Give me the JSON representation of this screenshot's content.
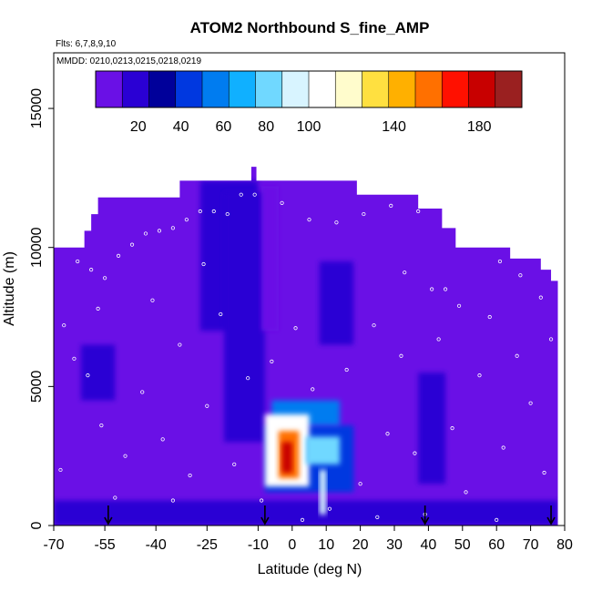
{
  "chart_data": {
    "type": "heatmap",
    "title": "ATOM2 Northbound S_fine_AMP",
    "subtitle_flights": "Flts: 6,7,8,9,10",
    "subtitle_dates": "MMDD: 0210,0213,0215,0218,0219",
    "xlabel": "Latitude (deg N)",
    "ylabel": "Altitude (m)",
    "xlim": [
      -70,
      80
    ],
    "ylim": [
      0,
      17000
    ],
    "x_ticks": [
      -70,
      -55,
      -40,
      -25,
      -10,
      0,
      10,
      20,
      30,
      40,
      50,
      60,
      70,
      80
    ],
    "x_tick_labels": [
      "-70",
      "-55",
      "-40",
      "-25",
      "-10",
      "0",
      "10",
      "20",
      "30",
      "40",
      "50",
      "60",
      "70",
      "80"
    ],
    "y_ticks": [
      0,
      5000,
      10000,
      15000
    ],
    "y_tick_labels": [
      "0",
      "5000",
      "10000",
      "15000"
    ],
    "colorbar": {
      "range": [
        0,
        200
      ],
      "tick_values": [
        20,
        40,
        60,
        80,
        100,
        140,
        180
      ],
      "tick_labels": [
        "20",
        "40",
        "60",
        "80",
        "100",
        "140",
        "180"
      ],
      "colors": [
        "#6a10e6",
        "#2a00d4",
        "#00009a",
        "#0038e0",
        "#007cf0",
        "#10b0ff",
        "#70d8ff",
        "#d8f4ff",
        "#ffffff",
        "#fffccc",
        "#ffe040",
        "#ffb000",
        "#ff7000",
        "#ff1000",
        "#c80000",
        "#9a2020"
      ]
    },
    "ceiling_profile": [
      {
        "lat": -70,
        "alt": 10000
      },
      {
        "lat": -61,
        "alt": 10000
      },
      {
        "lat": -61,
        "alt": 10600
      },
      {
        "lat": -59,
        "alt": 10600
      },
      {
        "lat": -59,
        "alt": 11200
      },
      {
        "lat": -57,
        "alt": 11200
      },
      {
        "lat": -57,
        "alt": 11800
      },
      {
        "lat": -33,
        "alt": 11800
      },
      {
        "lat": -33,
        "alt": 12400
      },
      {
        "lat": -12,
        "alt": 12400
      },
      {
        "lat": -12,
        "alt": 12900
      },
      {
        "lat": -10.5,
        "alt": 12900
      },
      {
        "lat": -10.5,
        "alt": 12400
      },
      {
        "lat": 19,
        "alt": 12400
      },
      {
        "lat": 19,
        "alt": 11900
      },
      {
        "lat": 37,
        "alt": 11900
      },
      {
        "lat": 37,
        "alt": 11400
      },
      {
        "lat": 44,
        "alt": 11400
      },
      {
        "lat": 44,
        "alt": 10700
      },
      {
        "lat": 48,
        "alt": 10700
      },
      {
        "lat": 48,
        "alt": 10000
      },
      {
        "lat": 64,
        "alt": 10000
      },
      {
        "lat": 64,
        "alt": 9600
      },
      {
        "lat": 73,
        "alt": 9600
      },
      {
        "lat": 73,
        "alt": 9200
      },
      {
        "lat": 76,
        "alt": 9200
      },
      {
        "lat": 76,
        "alt": 8800
      },
      {
        "lat": 78,
        "alt": 8800
      },
      {
        "lat": 78,
        "alt": 0
      }
    ],
    "regions": [
      {
        "lat": [
          -70,
          78
        ],
        "alt": [
          0,
          13000
        ],
        "value": 4
      },
      {
        "lat": [
          -27,
          -10
        ],
        "alt": [
          7000,
          12400
        ],
        "value": 14
      },
      {
        "lat": [
          -20,
          -8
        ],
        "alt": [
          3000,
          12000
        ],
        "value": 18
      },
      {
        "lat": [
          -9,
          -4
        ],
        "alt": [
          7000,
          12200
        ],
        "value": 12
      },
      {
        "lat": [
          8,
          18
        ],
        "alt": [
          6500,
          9500
        ],
        "value": 16
      },
      {
        "lat": [
          -70,
          78
        ],
        "alt": [
          0,
          900
        ],
        "value": 16
      },
      {
        "lat": [
          37,
          45
        ],
        "alt": [
          1500,
          5500
        ],
        "value": 16
      },
      {
        "lat": [
          -62,
          -52
        ],
        "alt": [
          4500,
          6500
        ],
        "value": 14
      },
      {
        "lat": [
          -8,
          18
        ],
        "alt": [
          1200,
          3600
        ],
        "value": 40
      },
      {
        "lat": [
          -6,
          14
        ],
        "alt": [
          3600,
          4500
        ],
        "value": 60
      },
      {
        "lat": [
          -8,
          5
        ],
        "alt": [
          1400,
          4000
        ],
        "value": 110
      },
      {
        "lat": [
          -4,
          2
        ],
        "alt": [
          1700,
          3400
        ],
        "value": 150
      },
      {
        "lat": [
          -3,
          0
        ],
        "alt": [
          1900,
          3000
        ],
        "value": 185
      },
      {
        "lat": [
          4,
          14
        ],
        "alt": [
          2200,
          3200
        ],
        "value": 80
      },
      {
        "lat": [
          8,
          10
        ],
        "alt": [
          400,
          2000
        ],
        "value": 90
      }
    ],
    "sample_points": [
      {
        "lat": -63,
        "alt": 9500
      },
      {
        "lat": -59,
        "alt": 9200
      },
      {
        "lat": -55,
        "alt": 8900
      },
      {
        "lat": -51,
        "alt": 9700
      },
      {
        "lat": -47,
        "alt": 10100
      },
      {
        "lat": -43,
        "alt": 10500
      },
      {
        "lat": -39,
        "alt": 10600
      },
      {
        "lat": -35,
        "alt": 10700
      },
      {
        "lat": -31,
        "alt": 11000
      },
      {
        "lat": -27,
        "alt": 11300
      },
      {
        "lat": -23,
        "alt": 11300
      },
      {
        "lat": -19,
        "alt": 11200
      },
      {
        "lat": -15,
        "alt": 11900
      },
      {
        "lat": -11,
        "alt": 11900
      },
      {
        "lat": -3,
        "alt": 11600
      },
      {
        "lat": 5,
        "alt": 11000
      },
      {
        "lat": 13,
        "alt": 10900
      },
      {
        "lat": 21,
        "alt": 11200
      },
      {
        "lat": 29,
        "alt": 11500
      },
      {
        "lat": 37,
        "alt": 11300
      },
      {
        "lat": 41,
        "alt": 8500
      },
      {
        "lat": 45,
        "alt": 8500
      },
      {
        "lat": 53,
        "alt": 10100
      },
      {
        "lat": 61,
        "alt": 9500
      },
      {
        "lat": 67,
        "alt": 9000
      },
      {
        "lat": 73,
        "alt": 8200
      },
      {
        "lat": -67,
        "alt": 7200
      },
      {
        "lat": -64,
        "alt": 6000
      },
      {
        "lat": -60,
        "alt": 5400
      },
      {
        "lat": -56,
        "alt": 3600
      },
      {
        "lat": -49,
        "alt": 2500
      },
      {
        "lat": -44,
        "alt": 4800
      },
      {
        "lat": -38,
        "alt": 3100
      },
      {
        "lat": -33,
        "alt": 6500
      },
      {
        "lat": -30,
        "alt": 1800
      },
      {
        "lat": -25,
        "alt": 4300
      },
      {
        "lat": -21,
        "alt": 7600
      },
      {
        "lat": -17,
        "alt": 2200
      },
      {
        "lat": -13,
        "alt": 5300
      },
      {
        "lat": -9,
        "alt": 900
      },
      {
        "lat": -6,
        "alt": 5900
      },
      {
        "lat": 1,
        "alt": 7100
      },
      {
        "lat": 6,
        "alt": 4900
      },
      {
        "lat": 11,
        "alt": 600
      },
      {
        "lat": 16,
        "alt": 5600
      },
      {
        "lat": 20,
        "alt": 1500
      },
      {
        "lat": 24,
        "alt": 7200
      },
      {
        "lat": 28,
        "alt": 3300
      },
      {
        "lat": 32,
        "alt": 6100
      },
      {
        "lat": 36,
        "alt": 2600
      },
      {
        "lat": 43,
        "alt": 6700
      },
      {
        "lat": 47,
        "alt": 3500
      },
      {
        "lat": 51,
        "alt": 1200
      },
      {
        "lat": 55,
        "alt": 5400
      },
      {
        "lat": 58,
        "alt": 7500
      },
      {
        "lat": 62,
        "alt": 2800
      },
      {
        "lat": 66,
        "alt": 6100
      },
      {
        "lat": 70,
        "alt": 4400
      },
      {
        "lat": 74,
        "alt": 1900
      },
      {
        "lat": 76,
        "alt": 6700
      },
      {
        "lat": -68,
        "alt": 2000
      },
      {
        "lat": -57,
        "alt": 7800
      },
      {
        "lat": -41,
        "alt": 8100
      },
      {
        "lat": -35,
        "alt": 900
      },
      {
        "lat": -26,
        "alt": 9400
      },
      {
        "lat": 3,
        "alt": 200
      },
      {
        "lat": 25,
        "alt": 300
      },
      {
        "lat": 39,
        "alt": 400
      },
      {
        "lat": 49,
        "alt": 7900
      },
      {
        "lat": 60,
        "alt": 200
      },
      {
        "lat": -52,
        "alt": 1000
      },
      {
        "lat": 33,
        "alt": 9100
      }
    ],
    "profile_markers_lat": [
      -54,
      -8,
      39,
      76
    ]
  }
}
